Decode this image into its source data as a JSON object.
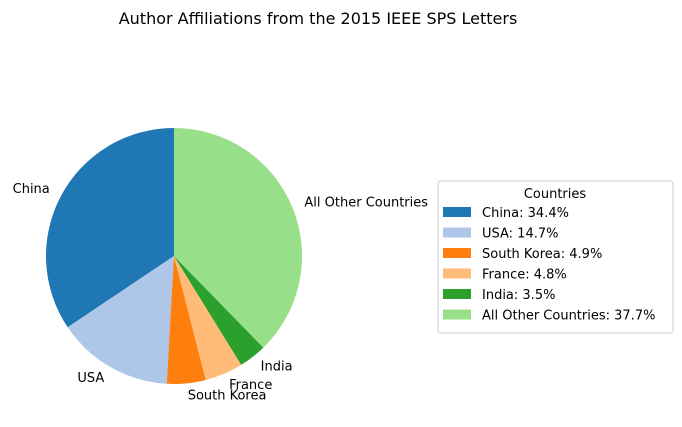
{
  "chart_data": {
    "type": "pie",
    "title": "Author Affiliations from the 2015 IEEE SPS Letters",
    "start_angle_deg": 90,
    "direction": "counterclockwise",
    "legend": {
      "title": "Countries",
      "position": "right"
    },
    "slices": [
      {
        "label": "China",
        "value": 34.4,
        "color": "#1f77b4",
        "legend_text": "China: 34.4%"
      },
      {
        "label": "USA",
        "value": 14.7,
        "color": "#aec7e8",
        "legend_text": "USA: 14.7%"
      },
      {
        "label": "South Korea",
        "value": 4.9,
        "color": "#ff7f0e",
        "legend_text": "South Korea: 4.9%"
      },
      {
        "label": "France",
        "value": 4.8,
        "color": "#ffbb78",
        "legend_text": "France: 4.8%"
      },
      {
        "label": "India",
        "value": 3.5,
        "color": "#2ca02c",
        "legend_text": "India: 3.5%"
      },
      {
        "label": "All Other Countries",
        "value": 37.7,
        "color": "#98df8a",
        "legend_text": "All Other Countries: 37.7%"
      }
    ]
  }
}
